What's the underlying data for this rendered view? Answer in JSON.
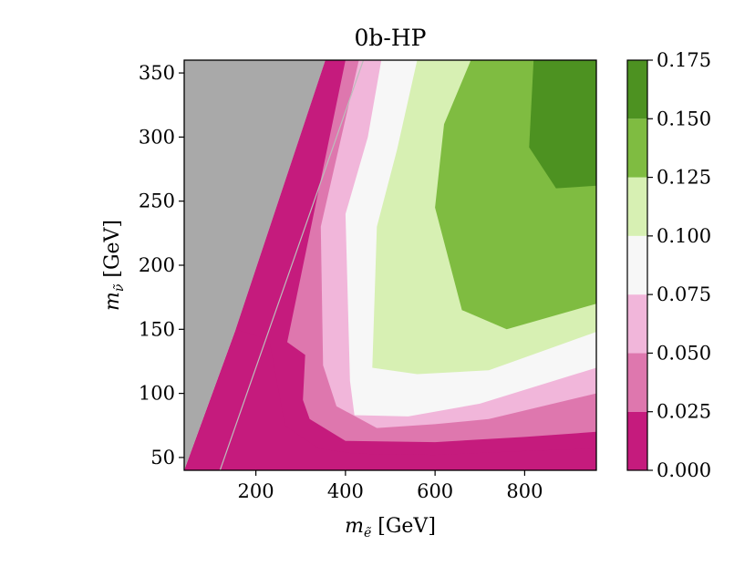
{
  "chart_data": {
    "type": "contourf",
    "title": "0b-HP",
    "xlabel": {
      "symbol": "m",
      "sub": "ẽ",
      "unit": " [GeV]"
    },
    "ylabel": {
      "symbol": "m",
      "sub": "ν̃",
      "unit": " [GeV]"
    },
    "xlim": [
      40,
      960
    ],
    "ylim": [
      40,
      360
    ],
    "x_ticks": [
      200,
      400,
      600,
      800
    ],
    "x_tick_labels": [
      "200",
      "400",
      "600",
      "800"
    ],
    "y_ticks": [
      50,
      100,
      150,
      200,
      250,
      300,
      350
    ],
    "y_tick_labels": [
      "50",
      "100",
      "150",
      "200",
      "250",
      "300",
      "350"
    ],
    "grid": false,
    "excluded_region": {
      "color": "#a9a9a9",
      "boundary": [
        [
          40,
          40
        ],
        [
          40,
          360
        ],
        [
          355,
          360
        ],
        [
          155,
          150
        ],
        [
          40,
          40
        ]
      ]
    },
    "diagonal_line": {
      "x": [
        120,
        440
      ],
      "y": [
        40,
        360
      ],
      "color": "#bdbdbd"
    },
    "levels": [
      0.0,
      0.025,
      0.05,
      0.075,
      0.1,
      0.125,
      0.15,
      0.175
    ],
    "colors": [
      "#c51b7d",
      "#de77ae",
      "#f1b6da",
      "#f7f7f7",
      "#d7f0b3",
      "#7fbc41",
      "#4d9221"
    ],
    "contour_bounds": [
      [
        [
          155,
          150
        ],
        [
          355,
          360
        ],
        [
          960,
          360
        ],
        [
          960,
          40
        ],
        [
          40,
          40
        ],
        [
          155,
          150
        ]
      ],
      [
        [
          155,
          150
        ],
        [
          230,
          142
        ],
        [
          265,
          75
        ],
        [
          340,
          57
        ],
        [
          420,
          53
        ],
        [
          600,
          52
        ],
        [
          800,
          55
        ],
        [
          960,
          57
        ],
        [
          960,
          360
        ],
        [
          355,
          360
        ],
        [
          155,
          150
        ]
      ],
      [
        [
          270,
          140
        ],
        [
          310,
          130
        ],
        [
          305,
          95
        ],
        [
          320,
          80
        ],
        [
          400,
          63
        ],
        [
          600,
          62
        ],
        [
          800,
          66
        ],
        [
          960,
          70
        ],
        [
          960,
          360
        ],
        [
          400,
          360
        ],
        [
          270,
          140
        ]
      ],
      [
        [
          430,
          360
        ],
        [
          345,
          230
        ],
        [
          350,
          122
        ],
        [
          380,
          90
        ],
        [
          470,
          73
        ],
        [
          600,
          76
        ],
        [
          720,
          80
        ],
        [
          960,
          100
        ],
        [
          960,
          360
        ],
        [
          430,
          360
        ]
      ],
      [
        [
          480,
          360
        ],
        [
          450,
          300
        ],
        [
          400,
          240
        ],
        [
          410,
          110
        ],
        [
          420,
          83
        ],
        [
          540,
          82
        ],
        [
          700,
          92
        ],
        [
          960,
          120
        ],
        [
          960,
          360
        ],
        [
          480,
          360
        ]
      ],
      [
        [
          560,
          360
        ],
        [
          515,
          290
        ],
        [
          470,
          230
        ],
        [
          460,
          120
        ],
        [
          560,
          115
        ],
        [
          720,
          118
        ],
        [
          960,
          148
        ],
        [
          960,
          360
        ],
        [
          560,
          360
        ]
      ],
      [
        [
          680,
          360
        ],
        [
          620,
          310
        ],
        [
          600,
          245
        ],
        [
          660,
          165
        ],
        [
          760,
          150
        ],
        [
          960,
          170
        ],
        [
          960,
          360
        ],
        [
          680,
          360
        ]
      ],
      [
        [
          820,
          360
        ],
        [
          810,
          292
        ],
        [
          870,
          260
        ],
        [
          960,
          262
        ],
        [
          960,
          360
        ],
        [
          820,
          360
        ]
      ]
    ],
    "colorbar": {
      "ticks": [
        0.0,
        0.025,
        0.05,
        0.075,
        0.1,
        0.125,
        0.15,
        0.175
      ],
      "tick_labels": [
        "0.000",
        "0.025",
        "0.050",
        "0.075",
        "0.100",
        "0.125",
        "0.150",
        "0.175"
      ]
    }
  }
}
